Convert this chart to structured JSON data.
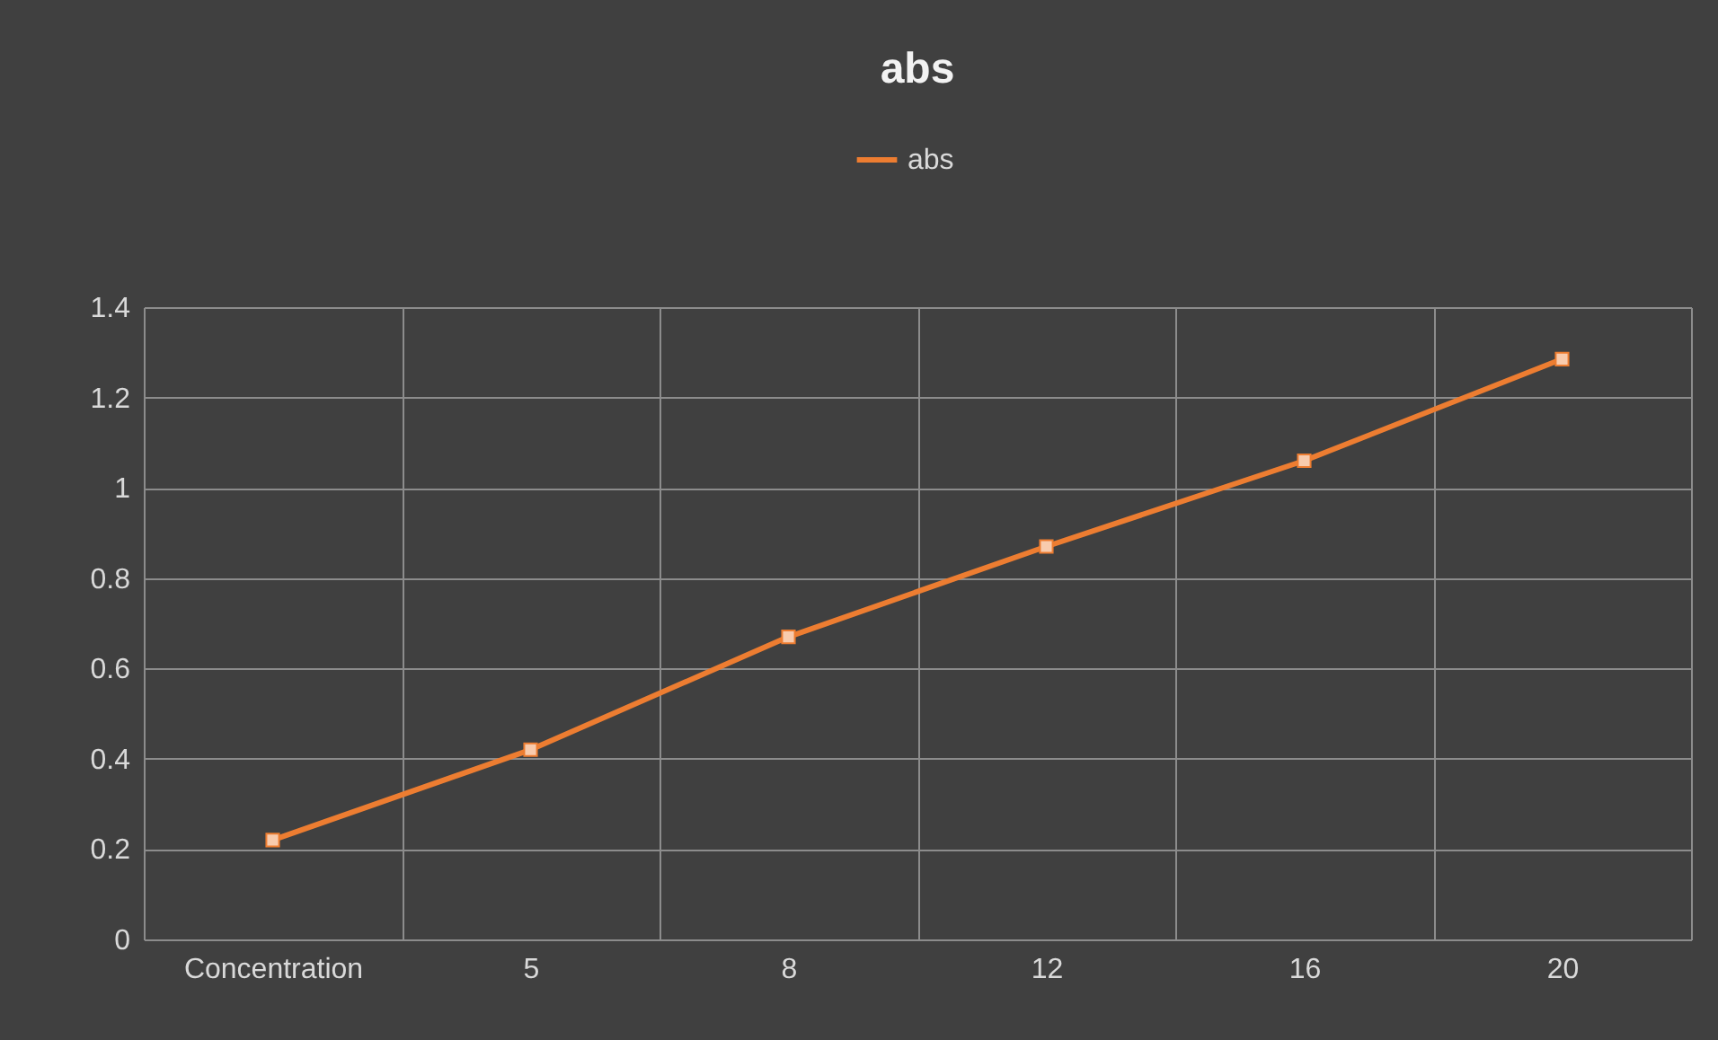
{
  "chart_data": {
    "type": "line",
    "title": "abs",
    "categories": [
      "Concentration",
      "5",
      "8",
      "12",
      "16",
      "20"
    ],
    "series": [
      {
        "name": "abs",
        "color": "#ed7d31",
        "values": [
          0.22,
          0.42,
          0.67,
          0.87,
          1.06,
          1.285
        ]
      }
    ],
    "ylim": [
      0,
      1.4
    ],
    "yticks": [
      0,
      0.2,
      0.4,
      0.6,
      0.8,
      1,
      1.2,
      1.4
    ],
    "grid": true,
    "legend": "top",
    "marker": "square",
    "line_style": "solid"
  }
}
